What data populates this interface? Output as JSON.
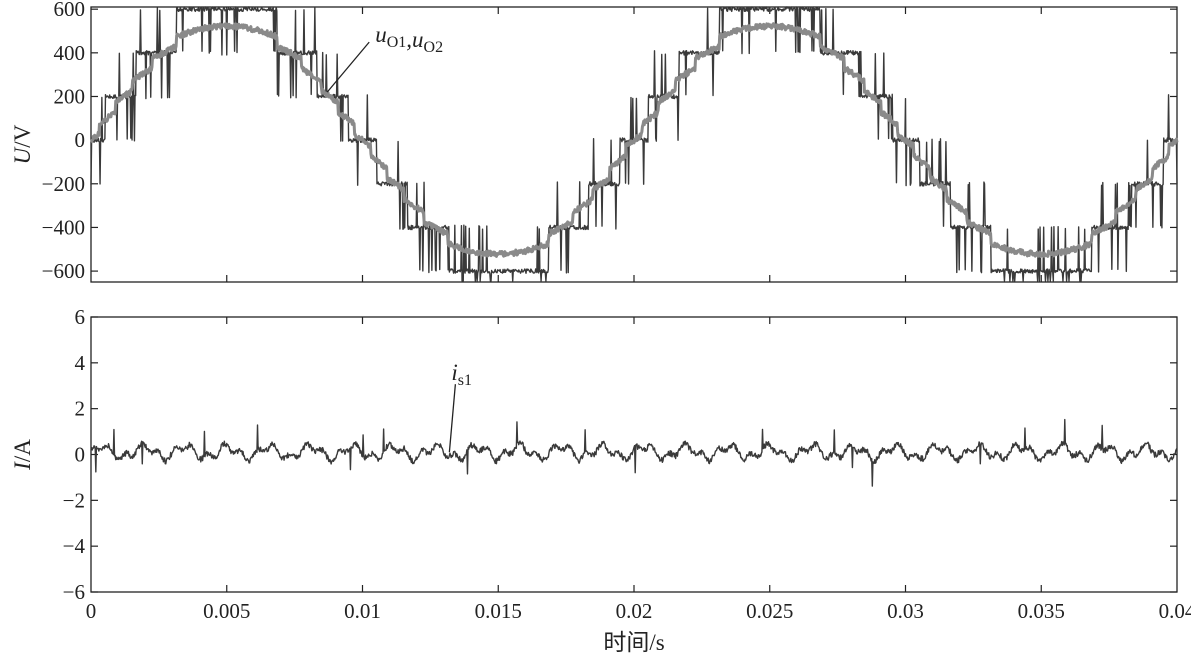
{
  "chart_data": [
    {
      "type": "line",
      "ylabel": {
        "var": "U",
        "unit": "/V"
      },
      "ylim": [
        -650,
        610
      ],
      "xlim": [
        0,
        0.04
      ],
      "yticks": [
        -600,
        -400,
        -200,
        0,
        200,
        400,
        600
      ],
      "ytick_labels": [
        "−600",
        "−400",
        "−200",
        "0",
        "200",
        "400",
        "600"
      ],
      "grid": false,
      "colors": {
        "uO1": "#3a3a3a",
        "uO2": "#8a8a8a"
      },
      "annotation": {
        "base": "u",
        "parts": [
          {
            "sub": "O1"
          },
          {
            "sep": ",u",
            "sub": "O2"
          }
        ],
        "at": {
          "x": 0.0087,
          "y": 220
        }
      },
      "series": [
        {
          "id": "uO1",
          "waveform": "staircase",
          "amplitude": 600,
          "frequency_hz": 50,
          "step_v": 200,
          "phase_rad": 0
        },
        {
          "id": "uO2",
          "waveform": "sine-like staircase",
          "amplitude": 540,
          "frequency_hz": 50,
          "phase_rad": 0
        }
      ]
    },
    {
      "type": "line",
      "ylabel": {
        "var": "I",
        "unit": "/A"
      },
      "ylim": [
        -6,
        6
      ],
      "xlim": [
        0,
        0.04
      ],
      "yticks": [
        -6,
        -4,
        -2,
        0,
        2,
        4,
        6
      ],
      "ytick_labels": [
        "−6",
        "−4",
        "−2",
        "0",
        "2",
        "4",
        "6"
      ],
      "xticks": [
        0,
        0.005,
        0.01,
        0.015,
        0.02,
        0.025,
        0.03,
        0.035,
        0.04
      ],
      "xtick_labels": [
        "0",
        "0.005",
        "0.01",
        "0.015",
        "0.02",
        "0.025",
        "0.03",
        "0.035",
        "0.04"
      ],
      "xlabel": "时间/s",
      "grid": false,
      "colors": {
        "is1": "#3a3a3a"
      },
      "annotation": {
        "base": "i",
        "parts": [
          {
            "sub": "s1"
          }
        ],
        "at": {
          "x": 0.0132,
          "y": 0.1
        }
      },
      "series": [
        {
          "id": "is1",
          "waveform": "ripple",
          "mean": 0.1,
          "ripple_amplitude": 0.4,
          "spike_max": 1.0
        }
      ]
    }
  ]
}
